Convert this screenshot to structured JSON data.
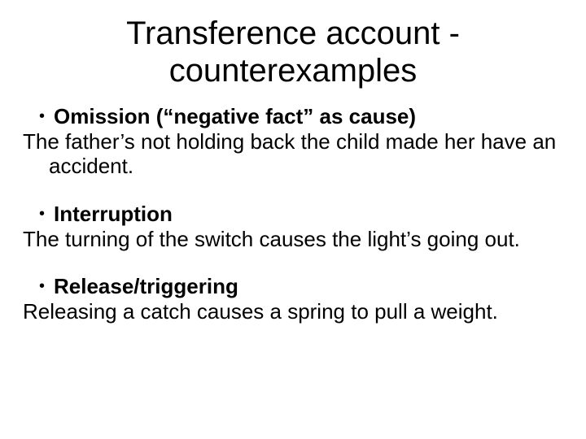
{
  "background_color": "#ffffff",
  "text_color": "#000000",
  "title_fontsize": 40,
  "body_fontsize": 26,
  "font_family": "Arial",
  "title": {
    "line1": "Transference account -",
    "line2": "counterexamples"
  },
  "groups": [
    {
      "heading": "Omission (“negative fact” as cause)",
      "text": "The father’s not holding back the child made her have an accident."
    },
    {
      "heading": "Interruption",
      "text": "The turning of the switch causes the light’s going out."
    },
    {
      "heading": "Release/triggering",
      "text": "Releasing a catch causes a spring to pull a weight."
    }
  ]
}
